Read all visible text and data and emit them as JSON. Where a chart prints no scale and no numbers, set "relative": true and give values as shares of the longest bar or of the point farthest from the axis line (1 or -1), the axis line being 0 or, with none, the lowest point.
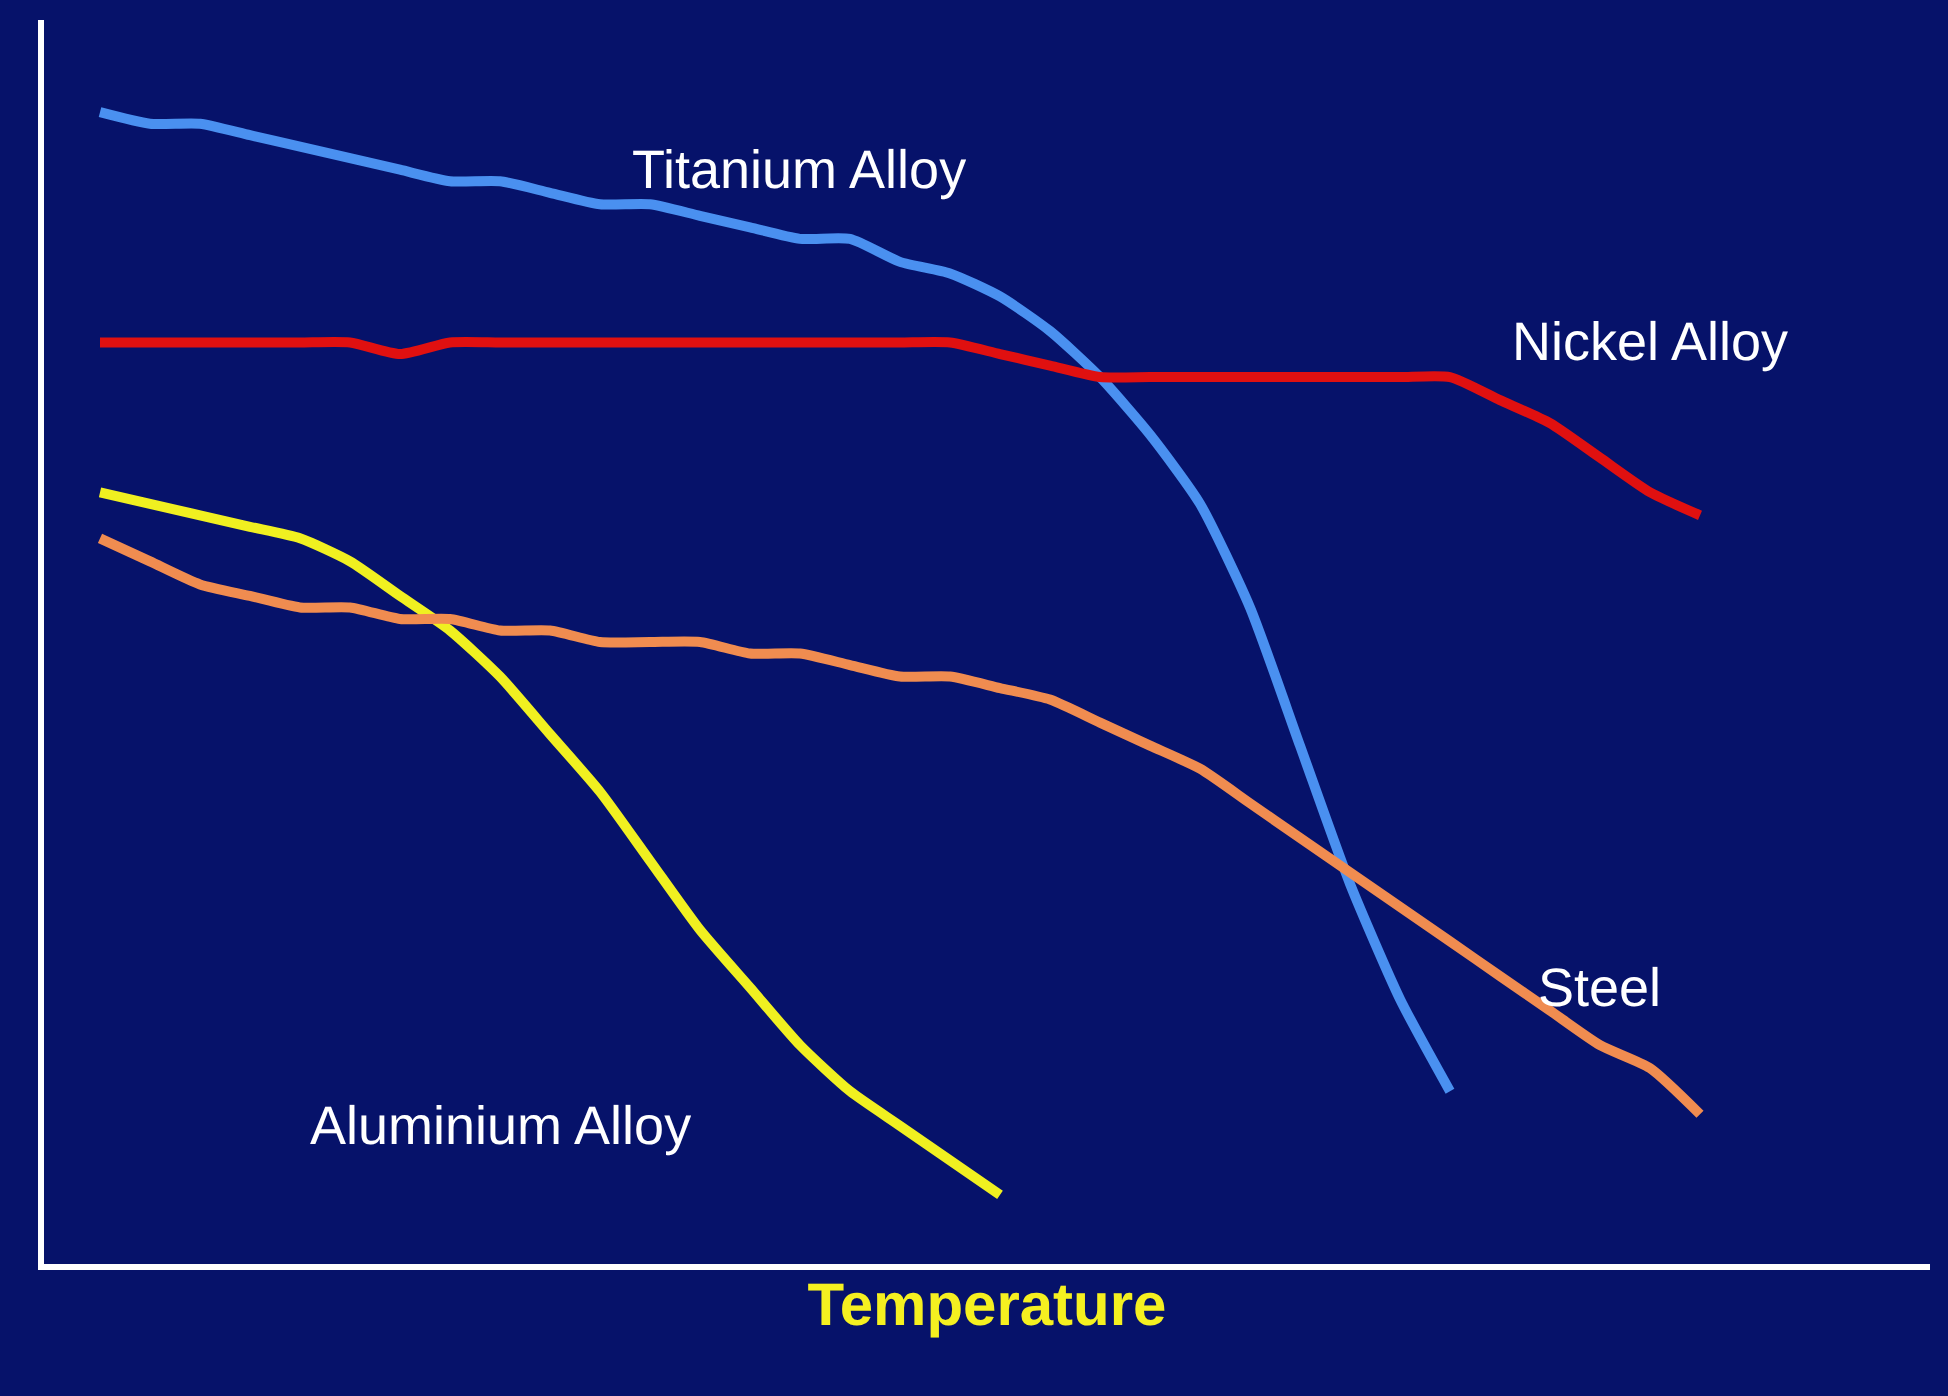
{
  "chart_data": {
    "type": "line",
    "relative": true,
    "xlabel": "Temperature",
    "legend": false,
    "grid": false,
    "tick_labels": false,
    "marker": "none",
    "line_style": "solid",
    "categories": [
      null,
      null,
      null,
      null,
      null,
      null,
      null,
      null,
      null,
      null,
      null,
      null,
      null,
      null,
      null,
      null,
      null,
      null,
      null,
      null,
      null,
      null,
      null,
      null,
      null,
      null,
      null,
      null,
      null,
      null,
      null,
      null,
      null
    ],
    "series": [
      {
        "name": "Titanium Alloy",
        "color": "#4a90f0",
        "values": [
          1.0,
          0.99,
          0.99,
          0.98,
          0.97,
          0.96,
          0.95,
          0.94,
          0.94,
          0.93,
          0.92,
          0.92,
          0.91,
          0.9,
          0.89,
          0.89,
          0.87,
          0.86,
          0.84,
          0.81,
          0.77,
          0.72,
          0.66,
          0.57,
          0.45,
          0.33,
          0.23,
          0.15,
          null,
          null,
          null,
          null,
          null
        ]
      },
      {
        "name": "Nickel Alloy",
        "color": "#e01010",
        "values": [
          0.8,
          0.8,
          0.8,
          0.8,
          0.8,
          0.8,
          0.79,
          0.8,
          0.8,
          0.8,
          0.8,
          0.8,
          0.8,
          0.8,
          0.8,
          0.8,
          0.8,
          0.8,
          0.79,
          0.78,
          0.77,
          0.77,
          0.77,
          0.77,
          0.77,
          0.77,
          0.77,
          0.77,
          0.75,
          0.73,
          0.7,
          0.67,
          0.65
        ]
      },
      {
        "name": "Aluminium Alloy",
        "color": "#f0f020",
        "values": [
          0.67,
          0.66,
          0.65,
          0.64,
          0.63,
          0.61,
          0.58,
          0.55,
          0.51,
          0.46,
          0.41,
          0.35,
          0.29,
          0.24,
          0.19,
          0.15,
          0.12,
          0.09,
          0.06,
          null,
          null,
          null,
          null,
          null,
          null,
          null,
          null,
          null,
          null,
          null,
          null,
          null,
          null
        ]
      },
      {
        "name": "Steel",
        "color": "#f08c50",
        "values": [
          0.63,
          0.61,
          0.59,
          0.58,
          0.57,
          0.57,
          0.56,
          0.56,
          0.55,
          0.55,
          0.54,
          0.54,
          0.54,
          0.53,
          0.53,
          0.52,
          0.51,
          0.51,
          0.5,
          0.49,
          0.47,
          0.45,
          0.43,
          0.4,
          0.37,
          0.34,
          0.31,
          0.28,
          0.25,
          0.22,
          0.19,
          0.17,
          0.13
        ]
      }
    ]
  }
}
